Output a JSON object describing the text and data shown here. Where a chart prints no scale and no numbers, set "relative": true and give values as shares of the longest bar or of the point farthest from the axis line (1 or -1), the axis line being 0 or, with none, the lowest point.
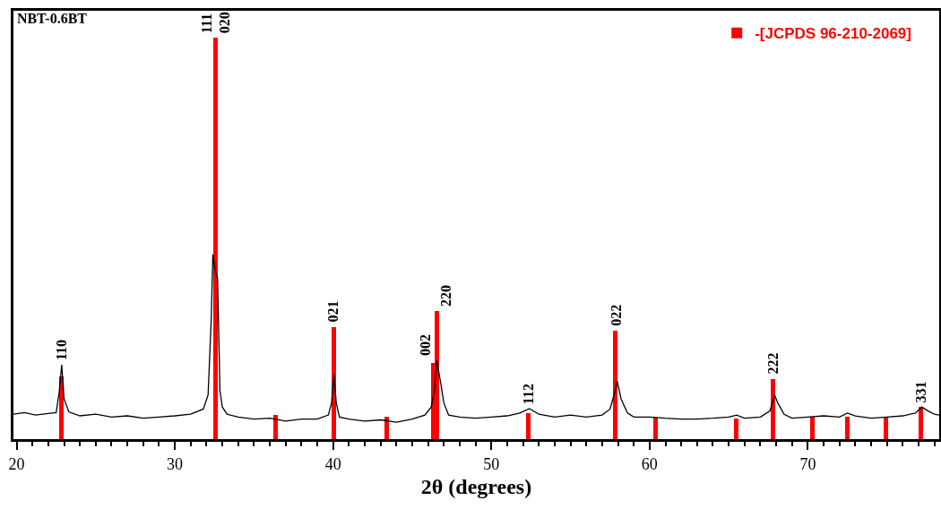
{
  "chart_data": {
    "type": "line",
    "title": "NBT-0.6BT",
    "xlabel": "2θ (degrees)",
    "relative": true,
    "xlim": [
      19.8,
      78.3
    ],
    "xticks": [
      20,
      30,
      40,
      50,
      60,
      70
    ],
    "grid": false,
    "legend": "top right",
    "series": [
      {
        "color": "#000000",
        "x": [
          19.8,
          20.5,
          21.2,
          22.0,
          22.5,
          22.7,
          22.85,
          23.0,
          23.3,
          24,
          25,
          26,
          27,
          28,
          29,
          30,
          31,
          31.8,
          32.1,
          32.3,
          32.4,
          32.55,
          32.7,
          32.85,
          33.0,
          33.3,
          34,
          35,
          36,
          37,
          38,
          39,
          39.7,
          39.9,
          40.05,
          40.2,
          40.4,
          41,
          42,
          43,
          44,
          45,
          45.8,
          46.2,
          46.4,
          46.55,
          46.8,
          47.0,
          47.3,
          48,
          49,
          50,
          51,
          51.8,
          52.4,
          53,
          54,
          55,
          56,
          57,
          57.5,
          57.75,
          57.95,
          58.2,
          58.6,
          59,
          60,
          61,
          62,
          63,
          64,
          65,
          65.5,
          66,
          67,
          67.6,
          67.9,
          68.1,
          68.5,
          69,
          70,
          71,
          72,
          72.5,
          73,
          74,
          75,
          76,
          76.8,
          77.2,
          77.6,
          78,
          78.3
        ],
        "values": [
          0.062,
          0.066,
          0.06,
          0.064,
          0.066,
          0.12,
          0.185,
          0.1,
          0.068,
          0.058,
          0.062,
          0.055,
          0.058,
          0.052,
          0.055,
          0.058,
          0.062,
          0.075,
          0.11,
          0.3,
          0.46,
          0.42,
          0.4,
          0.12,
          0.08,
          0.062,
          0.055,
          0.05,
          0.052,
          0.045,
          0.05,
          0.05,
          0.06,
          0.09,
          0.16,
          0.09,
          0.055,
          0.05,
          0.045,
          0.048,
          0.042,
          0.05,
          0.06,
          0.08,
          0.12,
          0.196,
          0.14,
          0.09,
          0.06,
          0.055,
          0.052,
          0.055,
          0.058,
          0.065,
          0.076,
          0.062,
          0.055,
          0.06,
          0.055,
          0.06,
          0.075,
          0.11,
          0.145,
          0.1,
          0.065,
          0.055,
          0.055,
          0.052,
          0.05,
          0.05,
          0.052,
          0.055,
          0.06,
          0.052,
          0.055,
          0.07,
          0.11,
          0.09,
          0.062,
          0.052,
          0.055,
          0.058,
          0.055,
          0.065,
          0.058,
          0.052,
          0.055,
          0.058,
          0.065,
          0.08,
          0.07,
          0.062,
          0.06
        ]
      },
      {
        "type": "bar",
        "name": "-[JCPDS 96-210-2069]",
        "color": "#ff0000",
        "x": [
          22.83,
          32.56,
          36.35,
          40.02,
          43.36,
          46.35,
          46.55,
          52.35,
          57.84,
          60.38,
          65.47,
          67.8,
          70.28,
          72.49,
          74.92,
          77.13
        ],
        "values": [
          0.156,
          1,
          0.06,
          0.28,
          0.056,
          0.19,
          0.32,
          0.065,
          0.27,
          0.054,
          0.051,
          0.15,
          0.056,
          0.056,
          0.054,
          0.08
        ]
      }
    ],
    "annotations": [
      {
        "text": "110",
        "x": 22.83,
        "y": 0.185
      },
      {
        "text": "111",
        "x": 32.56,
        "y": 1
      },
      {
        "text": "020",
        "x": 32.56,
        "y": 1
      },
      {
        "text": "021",
        "x": 40.02,
        "y": 0.28
      },
      {
        "text": "002",
        "x": 46.35,
        "y": 0.196
      },
      {
        "text": "220",
        "x": 46.55,
        "y": 0.32
      },
      {
        "text": "112",
        "x": 52.35,
        "y": 0.076
      },
      {
        "text": "022",
        "x": 57.84,
        "y": 0.27
      },
      {
        "text": "222",
        "x": 67.8,
        "y": 0.15
      },
      {
        "text": "331",
        "x": 77.13,
        "y": 0.08
      }
    ]
  }
}
